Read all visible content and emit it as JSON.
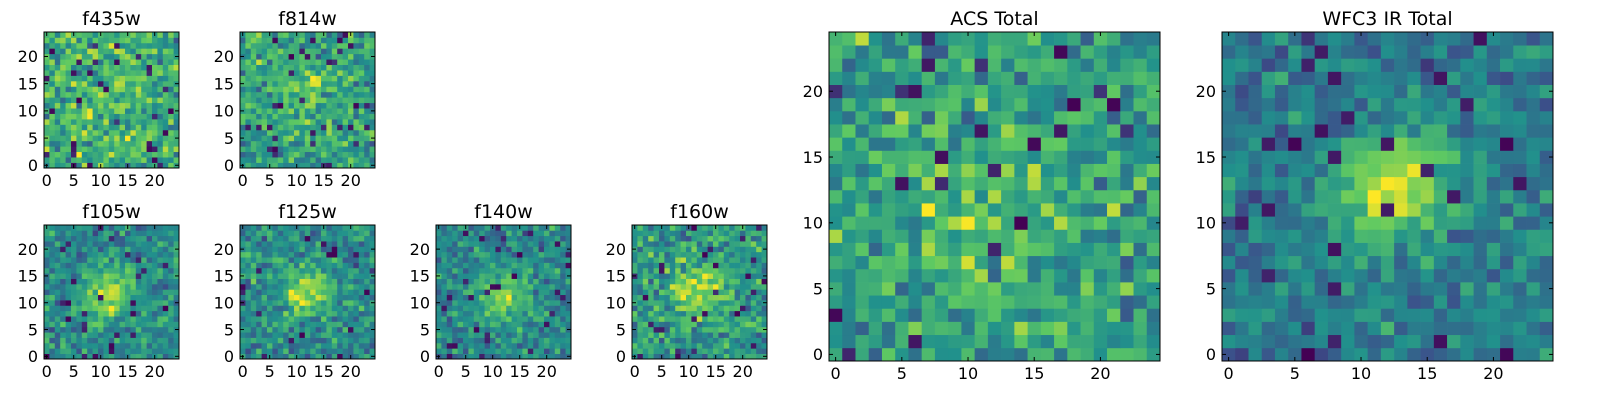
{
  "colormap": {
    "name": "viridis",
    "stops": [
      "#440154",
      "#3b528b",
      "#21918c",
      "#5ec962",
      "#fde725"
    ]
  },
  "chart_data": [
    {
      "type": "heatmap",
      "title": "f435w",
      "xlabel": "",
      "ylabel": "",
      "grid": false,
      "x_range": [
        -0.5,
        24.5
      ],
      "y_range": [
        -0.5,
        24.5
      ],
      "x_ticks": [
        0,
        5,
        10,
        15,
        20
      ],
      "y_ticks": [
        0,
        5,
        10,
        15,
        20
      ],
      "shape": [
        25,
        25
      ],
      "pattern": "noise",
      "seed": 11,
      "center": [
        12,
        12
      ],
      "peak": 0.05,
      "spread": 4
    },
    {
      "type": "heatmap",
      "title": "f814w",
      "xlabel": "",
      "ylabel": "",
      "grid": false,
      "x_range": [
        -0.5,
        24.5
      ],
      "y_range": [
        -0.5,
        24.5
      ],
      "x_ticks": [
        0,
        5,
        10,
        15,
        20
      ],
      "y_ticks": [
        0,
        5,
        10,
        15,
        20
      ],
      "shape": [
        25,
        25
      ],
      "pattern": "faint-source",
      "seed": 23,
      "center": [
        11,
        13
      ],
      "peak": 0.2,
      "spread": 3.5
    },
    {
      "type": "heatmap",
      "title": "f105w",
      "xlabel": "",
      "ylabel": "",
      "grid": false,
      "x_range": [
        -0.5,
        24.5
      ],
      "y_range": [
        -0.5,
        24.5
      ],
      "x_ticks": [
        0,
        5,
        10,
        15,
        20
      ],
      "y_ticks": [
        0,
        5,
        10,
        15,
        20
      ],
      "shape": [
        25,
        25
      ],
      "pattern": "source",
      "seed": 37,
      "center": [
        12,
        12
      ],
      "peak": 0.45,
      "spread": 3.5
    },
    {
      "type": "heatmap",
      "title": "f125w",
      "xlabel": "",
      "ylabel": "",
      "grid": false,
      "x_range": [
        -0.5,
        24.5
      ],
      "y_range": [
        -0.5,
        24.5
      ],
      "x_ticks": [
        0,
        5,
        10,
        15,
        20
      ],
      "y_ticks": [
        0,
        5,
        10,
        15,
        20
      ],
      "shape": [
        25,
        25
      ],
      "pattern": "source",
      "seed": 41,
      "center": [
        12,
        12
      ],
      "peak": 0.4,
      "spread": 3.5
    },
    {
      "type": "heatmap",
      "title": "f140w",
      "xlabel": "",
      "ylabel": "",
      "grid": false,
      "x_range": [
        -0.5,
        24.5
      ],
      "y_range": [
        -0.5,
        24.5
      ],
      "x_ticks": [
        0,
        5,
        10,
        15,
        20
      ],
      "y_ticks": [
        0,
        5,
        10,
        15,
        20
      ],
      "shape": [
        25,
        25
      ],
      "pattern": "source",
      "seed": 53,
      "center": [
        12,
        11
      ],
      "peak": 0.35,
      "spread": 3.5
    },
    {
      "type": "heatmap",
      "title": "f160w",
      "xlabel": "",
      "ylabel": "",
      "grid": false,
      "x_range": [
        -0.5,
        24.5
      ],
      "y_range": [
        -0.5,
        24.5
      ],
      "x_ticks": [
        0,
        5,
        10,
        15,
        20
      ],
      "y_ticks": [
        0,
        5,
        10,
        15,
        20
      ],
      "shape": [
        25,
        25
      ],
      "pattern": "source",
      "seed": 67,
      "center": [
        12,
        12
      ],
      "peak": 0.35,
      "spread": 3.5
    },
    {
      "type": "heatmap",
      "title": "ACS Total",
      "xlabel": "",
      "ylabel": "",
      "grid": false,
      "x_range": [
        -0.5,
        24.5
      ],
      "y_range": [
        -0.5,
        24.5
      ],
      "x_ticks": [
        0,
        5,
        10,
        15,
        20
      ],
      "y_ticks": [
        0,
        5,
        10,
        15,
        20
      ],
      "shape": [
        25,
        25
      ],
      "pattern": "faint-source",
      "seed": 79,
      "center": [
        12,
        12
      ],
      "peak": 0.12,
      "spread": 4
    },
    {
      "type": "heatmap",
      "title": "WFC3 IR Total",
      "xlabel": "",
      "ylabel": "",
      "grid": false,
      "x_range": [
        -0.5,
        24.5
      ],
      "y_range": [
        -0.5,
        24.5
      ],
      "x_ticks": [
        0,
        5,
        10,
        15,
        20
      ],
      "y_ticks": [
        0,
        5,
        10,
        15,
        20
      ],
      "shape": [
        25,
        25
      ],
      "pattern": "strong-source",
      "seed": 97,
      "center": [
        12.5,
        12.5
      ],
      "peak": 0.7,
      "spread": 3
    }
  ]
}
